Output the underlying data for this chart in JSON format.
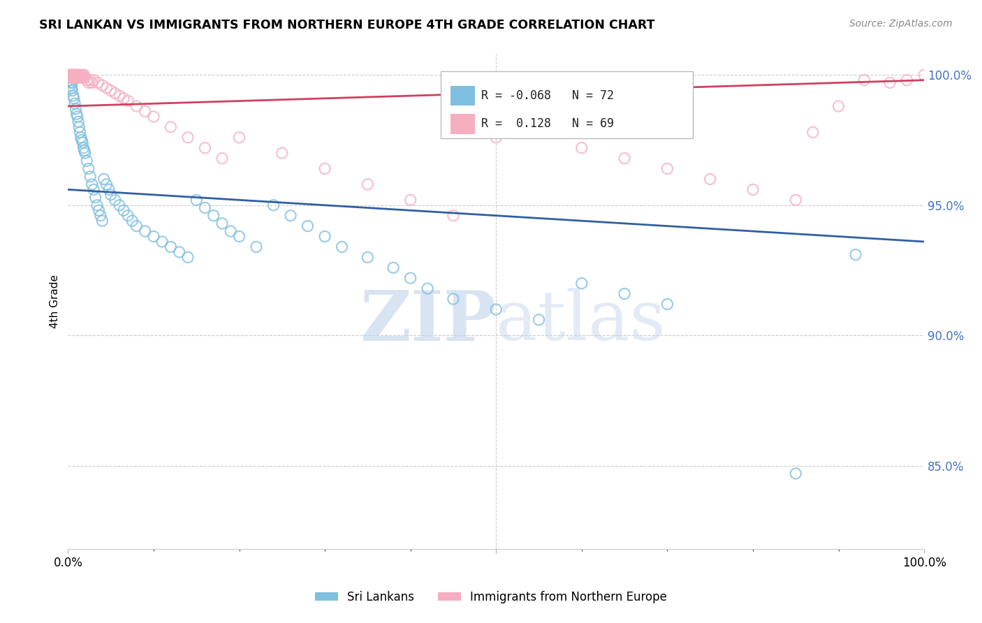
{
  "title": "SRI LANKAN VS IMMIGRANTS FROM NORTHERN EUROPE 4TH GRADE CORRELATION CHART",
  "source": "Source: ZipAtlas.com",
  "ylabel": "4th Grade",
  "legend_label1": "Sri Lankans",
  "legend_label2": "Immigrants from Northern Europe",
  "r1": -0.068,
  "n1": 72,
  "r2": 0.128,
  "n2": 69,
  "color_blue": "#7fbfdf",
  "color_pink": "#f5afc0",
  "color_blue_line": "#3060a0",
  "color_pink_line": "#d04060",
  "watermark_zip": "ZIP",
  "watermark_atlas": "atlas",
  "xlim": [
    0.0,
    1.0
  ],
  "ylim": [
    0.818,
    1.008
  ],
  "yticks": [
    0.85,
    0.9,
    0.95,
    1.0
  ],
  "ytick_labels": [
    "85.0%",
    "90.0%",
    "95.0%",
    "100.0%"
  ],
  "blue_line_y0": 0.956,
  "blue_line_y1": 0.936,
  "pink_line_y0": 0.988,
  "pink_line_y1": 0.998,
  "blue_scatter_x": [
    0.001,
    0.001,
    0.002,
    0.003,
    0.004,
    0.005,
    0.005,
    0.006,
    0.007,
    0.008,
    0.009,
    0.01,
    0.011,
    0.012,
    0.013,
    0.014,
    0.015,
    0.016,
    0.017,
    0.018,
    0.019,
    0.02,
    0.022,
    0.024,
    0.026,
    0.028,
    0.03,
    0.032,
    0.034,
    0.036,
    0.038,
    0.04,
    0.042,
    0.045,
    0.048,
    0.05,
    0.055,
    0.06,
    0.065,
    0.07,
    0.075,
    0.08,
    0.09,
    0.1,
    0.11,
    0.12,
    0.13,
    0.14,
    0.15,
    0.16,
    0.17,
    0.18,
    0.19,
    0.2,
    0.22,
    0.24,
    0.26,
    0.28,
    0.3,
    0.32,
    0.35,
    0.38,
    0.4,
    0.42,
    0.45,
    0.5,
    0.55,
    0.6,
    0.65,
    0.7,
    0.85,
    0.92
  ],
  "blue_scatter_y": [
    0.999,
    0.998,
    0.997,
    0.996,
    0.995,
    0.997,
    0.994,
    0.992,
    0.991,
    0.989,
    0.987,
    0.985,
    0.984,
    0.982,
    0.98,
    0.978,
    0.976,
    0.975,
    0.974,
    0.972,
    0.971,
    0.97,
    0.967,
    0.964,
    0.961,
    0.958,
    0.956,
    0.953,
    0.95,
    0.948,
    0.946,
    0.944,
    0.96,
    0.958,
    0.956,
    0.954,
    0.952,
    0.95,
    0.948,
    0.946,
    0.944,
    0.942,
    0.94,
    0.938,
    0.936,
    0.934,
    0.932,
    0.93,
    0.952,
    0.949,
    0.946,
    0.943,
    0.94,
    0.938,
    0.934,
    0.95,
    0.946,
    0.942,
    0.938,
    0.934,
    0.93,
    0.926,
    0.922,
    0.918,
    0.914,
    0.91,
    0.906,
    0.92,
    0.916,
    0.912,
    0.847,
    0.931
  ],
  "pink_scatter_x": [
    0.001,
    0.001,
    0.002,
    0.002,
    0.003,
    0.003,
    0.004,
    0.004,
    0.005,
    0.005,
    0.006,
    0.006,
    0.007,
    0.007,
    0.008,
    0.008,
    0.009,
    0.009,
    0.01,
    0.01,
    0.011,
    0.012,
    0.013,
    0.014,
    0.015,
    0.016,
    0.017,
    0.018,
    0.019,
    0.02,
    0.022,
    0.024,
    0.026,
    0.028,
    0.03,
    0.035,
    0.04,
    0.045,
    0.05,
    0.055,
    0.06,
    0.065,
    0.07,
    0.08,
    0.09,
    0.1,
    0.12,
    0.14,
    0.16,
    0.18,
    0.2,
    0.25,
    0.3,
    0.35,
    0.4,
    0.45,
    0.5,
    0.6,
    0.65,
    0.7,
    0.75,
    0.8,
    0.85,
    0.87,
    0.9,
    0.93,
    0.96,
    0.98,
    1.0
  ],
  "pink_scatter_y": [
    1.0,
    1.0,
    1.0,
    0.999,
    1.0,
    0.999,
    1.0,
    0.999,
    1.0,
    0.999,
    1.0,
    0.999,
    1.0,
    0.999,
    1.0,
    0.999,
    1.0,
    0.999,
    1.0,
    0.999,
    1.0,
    0.999,
    1.0,
    0.999,
    1.0,
    0.999,
    1.0,
    0.999,
    1.0,
    0.999,
    0.998,
    0.997,
    0.998,
    0.997,
    0.998,
    0.997,
    0.996,
    0.995,
    0.994,
    0.993,
    0.992,
    0.991,
    0.99,
    0.988,
    0.986,
    0.984,
    0.98,
    0.976,
    0.972,
    0.968,
    0.976,
    0.97,
    0.964,
    0.958,
    0.952,
    0.946,
    0.976,
    0.972,
    0.968,
    0.964,
    0.96,
    0.956,
    0.952,
    0.978,
    0.988,
    0.998,
    0.997,
    0.998,
    1.0
  ]
}
